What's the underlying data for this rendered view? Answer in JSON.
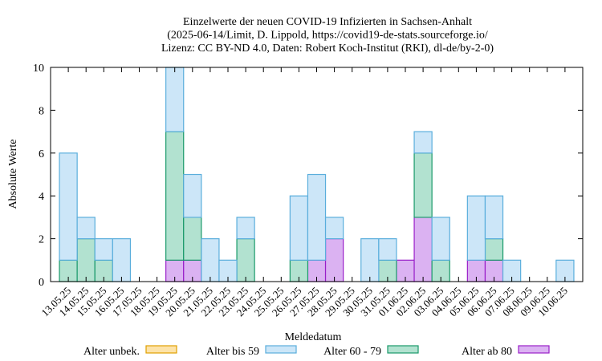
{
  "chart_data": {
    "type": "bar",
    "stacked": true,
    "title_lines": [
      "Einzelwerte der neuen COVID-19 Infizierten in Sachsen-Anhalt",
      "(2025-06-14/Limit, D. Lippold, https://covid19-de-stats.sourceforge.io/",
      "Lizenz: CC BY-ND 4.0, Daten: Robert Koch-Institut (RKI), dl-de/by-2-0)"
    ],
    "xlabel": "Meldedatum",
    "ylabel": "Absolute Werte",
    "ylim": [
      0,
      10
    ],
    "yticks": [
      0,
      2,
      4,
      6,
      8,
      10
    ],
    "grid": false,
    "legend_position": "bottom",
    "categories": [
      "13.05.25",
      "14.05.25",
      "15.05.25",
      "16.05.25",
      "17.05.25",
      "18.05.25",
      "19.05.25",
      "20.05.25",
      "21.05.25",
      "22.05.25",
      "23.05.25",
      "24.05.25",
      "25.05.25",
      "26.05.25",
      "27.05.25",
      "28.05.25",
      "29.05.25",
      "30.05.25",
      "31.05.25",
      "01.06.25",
      "02.06.25",
      "03.06.25",
      "04.06.25",
      "05.06.25",
      "06.06.25",
      "07.06.25",
      "08.06.25",
      "09.06.25",
      "10.06.25"
    ],
    "series": [
      {
        "name": "Alter ab 80",
        "color": "#dbb2f2",
        "stroke": "#9a1fc9",
        "values": [
          0,
          0,
          0,
          0,
          0,
          0,
          1,
          1,
          0,
          0,
          0,
          0,
          0,
          0,
          1,
          2,
          0,
          0,
          0,
          1,
          3,
          0,
          0,
          1,
          1,
          0,
          0,
          0,
          0
        ]
      },
      {
        "name": "Alter 60 - 79",
        "color": "#b2e2d0",
        "stroke": "#1a9a6a",
        "values": [
          1,
          2,
          1,
          0,
          0,
          0,
          6,
          2,
          0,
          0,
          2,
          0,
          0,
          1,
          0,
          0,
          0,
          0,
          1,
          0,
          3,
          1,
          0,
          0,
          1,
          0,
          0,
          0,
          0
        ]
      },
      {
        "name": "Alter bis 59",
        "color": "#cce6f8",
        "stroke": "#5aaedc",
        "values": [
          5,
          1,
          1,
          2,
          0,
          0,
          3,
          2,
          2,
          1,
          1,
          0,
          0,
          3,
          4,
          1,
          0,
          2,
          1,
          0,
          1,
          2,
          0,
          3,
          2,
          1,
          0,
          0,
          1
        ]
      },
      {
        "name": "Alter unbek.",
        "color": "#fde3a8",
        "stroke": "#e0a000",
        "values": [
          0,
          0,
          0,
          0,
          0,
          0,
          0,
          0,
          0,
          0,
          0,
          0,
          0,
          0,
          0,
          0,
          0,
          0,
          0,
          0,
          0,
          0,
          0,
          0,
          0,
          0,
          0,
          0,
          0
        ]
      }
    ],
    "legend_order": [
      "Alter unbek.",
      "Alter bis 59",
      "Alter 60 - 79",
      "Alter ab 80"
    ]
  }
}
